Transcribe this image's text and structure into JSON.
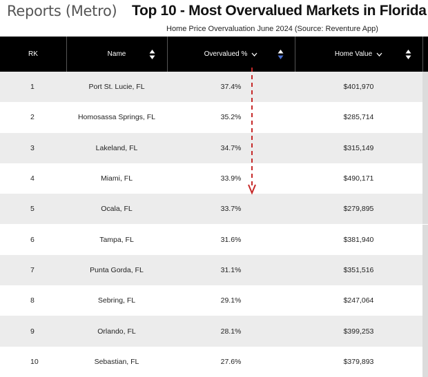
{
  "header": {
    "prefix": "Reports (Metro)",
    "title": "Top 10 - Most Overvalued Markets in Florida",
    "subtitle": "Home Price Overvaluation June 2024 (Source: Reventure App)"
  },
  "table": {
    "columns": {
      "rank": "RK",
      "name": "Name",
      "overvalued": "Overvalued %",
      "home_value": "Home Value"
    },
    "rows": [
      {
        "rank": "1",
        "name": "Port St. Lucie, FL",
        "overvalued": "37.4%",
        "home_value": "$401,970"
      },
      {
        "rank": "2",
        "name": "Homosassa Springs, FL",
        "overvalued": "35.2%",
        "home_value": "$285,714"
      },
      {
        "rank": "3",
        "name": "Lakeland, FL",
        "overvalued": "34.7%",
        "home_value": "$315,149"
      },
      {
        "rank": "4",
        "name": "Miami, FL",
        "overvalued": "33.9%",
        "home_value": "$490,171"
      },
      {
        "rank": "5",
        "name": "Ocala, FL",
        "overvalued": "33.7%",
        "home_value": "$279,895"
      },
      {
        "rank": "6",
        "name": "Tampa, FL",
        "overvalued": "31.6%",
        "home_value": "$381,940"
      },
      {
        "rank": "7",
        "name": "Punta Gorda, FL",
        "overvalued": "31.1%",
        "home_value": "$351,516"
      },
      {
        "rank": "8",
        "name": "Sebring, FL",
        "overvalued": "29.1%",
        "home_value": "$247,064"
      },
      {
        "rank": "9",
        "name": "Orlando, FL",
        "overvalued": "28.1%",
        "home_value": "$399,253"
      },
      {
        "rank": "10",
        "name": "Sebastian, FL",
        "overvalued": "27.6%",
        "home_value": "$379,893"
      }
    ]
  },
  "icons": {
    "sort": "sort-updown-icon",
    "chevron": "chevron-down-icon",
    "arrow": "dashed-down-arrow-icon"
  },
  "colors": {
    "header_bg": "#000000",
    "row_alt": "#ececec",
    "sort_active": "#4a6fd1",
    "arrow": "#c62828"
  }
}
